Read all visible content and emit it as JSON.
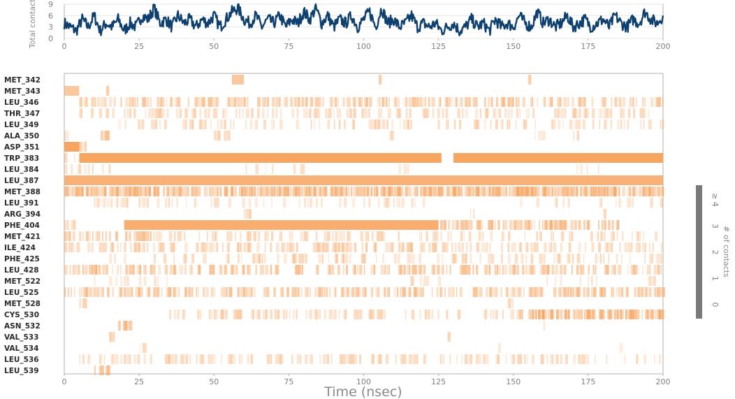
{
  "chart_data": [
    {
      "type": "line",
      "ylabel": "Total contacts",
      "xlabel": "",
      "xlim": [
        0,
        200
      ],
      "ylim": [
        0,
        9
      ],
      "xticks": [
        "0",
        "25",
        "50",
        "75",
        "100",
        "125",
        "150",
        "175",
        "200"
      ],
      "yticks": [
        "0",
        "3",
        "6",
        "9"
      ],
      "color": "#0d3f6f",
      "series": [
        {
          "x": [
            0,
            2,
            4,
            6,
            8,
            10,
            12,
            14,
            16,
            18,
            20,
            22,
            24,
            26,
            28,
            30,
            32,
            34,
            36,
            38,
            40,
            42,
            44,
            46,
            48,
            50,
            52,
            54,
            56,
            58,
            60,
            62,
            64,
            66,
            68,
            70,
            72,
            74,
            76,
            78,
            80,
            82,
            84,
            86,
            88,
            90,
            92,
            94,
            96,
            98,
            100,
            102,
            104,
            106,
            108,
            110,
            112,
            114,
            116,
            118,
            120,
            122,
            124,
            126,
            128,
            130,
            132,
            134,
            136,
            138,
            140,
            142,
            144,
            146,
            148,
            150,
            152,
            154,
            156,
            158,
            160,
            162,
            164,
            166,
            168,
            170,
            172,
            174,
            176,
            178,
            180,
            182,
            184,
            186,
            188,
            190,
            192,
            194,
            196,
            198,
            200
          ],
          "values": [
            4,
            3,
            2,
            5,
            3,
            6,
            2,
            4,
            3,
            5,
            2,
            4,
            3,
            6,
            5,
            8,
            4,
            5,
            3,
            6,
            4,
            5,
            3,
            5,
            4,
            6,
            3,
            5,
            7,
            8,
            5,
            4,
            6,
            3,
            5,
            4,
            6,
            3,
            5,
            4,
            7,
            5,
            8,
            4,
            6,
            3,
            5,
            4,
            6,
            3,
            5,
            7,
            3,
            8,
            4,
            5,
            3,
            4,
            6,
            3,
            4,
            3,
            4,
            2,
            3,
            4,
            2,
            3,
            5,
            3,
            4,
            2,
            5,
            3,
            4,
            3,
            6,
            4,
            3,
            7,
            4,
            5,
            3,
            4,
            6,
            3,
            4,
            5,
            3,
            4,
            5,
            3,
            6,
            4,
            3,
            5,
            4,
            7,
            5,
            4,
            6
          ]
        }
      ]
    },
    {
      "type": "heatmap",
      "xlabel": "Time (nsec)",
      "xlim": [
        0,
        200
      ],
      "xticks": [
        "0",
        "25",
        "50",
        "75",
        "100",
        "125",
        "150",
        "175",
        "200"
      ],
      "rows": [
        "MET_342",
        "MET_343",
        "LEU_346",
        "THR_347",
        "LEU_349",
        "ALA_350",
        "ASP_351",
        "TRP_383",
        "LEU_384",
        "LEU_387",
        "MET_388",
        "LEU_391",
        "ARG_394",
        "PHE_404",
        "MET_421",
        "ILE_424",
        "PHE_425",
        "LEU_428",
        "MET_522",
        "LEU_525",
        "MET_528",
        "CYS_530",
        "ASN_532",
        "VAL_533",
        "VAL_534",
        "LEU_536",
        "LEU_539"
      ],
      "intervals": [
        [
          [
            56,
            60,
            0.4
          ],
          [
            105,
            106,
            0.3
          ],
          [
            155,
            156,
            0.3
          ]
        ],
        [
          [
            0,
            5,
            0.4
          ],
          [
            14,
            15,
            0.3
          ]
        ],
        [
          [
            5,
            200,
            0.45,
            0.6
          ]
        ],
        [
          [
            5,
            80,
            0.25,
            0.35
          ],
          [
            80,
            195,
            0.3,
            0.4
          ]
        ],
        [
          [
            18,
            200,
            0.3,
            0.3
          ]
        ],
        [
          [
            0,
            8,
            0.3,
            0.4
          ],
          [
            12,
            15,
            0.4,
            0.8
          ],
          [
            50,
            55,
            0.3,
            0.6
          ],
          [
            108,
            110,
            0.3,
            0.6
          ],
          [
            155,
            160,
            0.3,
            0.5
          ],
          [
            170,
            172,
            0.3,
            0.6
          ]
        ],
        [
          [
            0,
            5,
            1.0,
            1.0
          ],
          [
            5,
            10,
            0.6,
            0.4
          ]
        ],
        [
          [
            0,
            5,
            0.3,
            0.3
          ],
          [
            5,
            126,
            1.0,
            1.0
          ],
          [
            130,
            200,
            1.0,
            1.0
          ]
        ],
        [
          [
            0,
            15,
            0.3,
            0.4
          ],
          [
            60,
            80,
            0.2,
            0.2
          ],
          [
            110,
            120,
            0.2,
            0.2
          ],
          [
            170,
            180,
            0.2,
            0.2
          ]
        ],
        [
          [
            0,
            200,
            0.8,
            0.95
          ]
        ],
        [
          [
            0,
            200,
            0.7,
            0.85
          ]
        ],
        [
          [
            10,
            40,
            0.25,
            0.4
          ],
          [
            40,
            120,
            0.2,
            0.25
          ],
          [
            150,
            200,
            0.2,
            0.2
          ]
        ],
        [
          [
            60,
            62,
            0.4,
            0.7
          ],
          [
            135,
            137,
            0.4,
            0.7
          ],
          [
            180,
            181,
            0.4,
            0.8
          ]
        ],
        [
          [
            0,
            5,
            0.3,
            0.4
          ],
          [
            20,
            125,
            0.85,
            0.95
          ],
          [
            125,
            185,
            0.6,
            0.6
          ]
        ],
        [
          [
            0,
            30,
            0.5,
            0.6
          ],
          [
            30,
            200,
            0.3,
            0.3
          ]
        ],
        [
          [
            0,
            45,
            0.3,
            0.4
          ],
          [
            45,
            120,
            0.4,
            0.5
          ],
          [
            120,
            200,
            0.3,
            0.4
          ]
        ],
        [
          [
            15,
            200,
            0.3,
            0.35
          ]
        ],
        [
          [
            0,
            200,
            0.5,
            0.5
          ]
        ],
        [
          [
            10,
            35,
            0.2,
            0.3
          ],
          [
            115,
            125,
            0.3,
            0.4
          ],
          [
            160,
            180,
            0.2,
            0.2
          ],
          [
            195,
            198,
            0.4,
            0.6
          ]
        ],
        [
          [
            0,
            200,
            0.5,
            0.6
          ]
        ],
        [
          [
            5,
            7,
            0.5,
            0.7
          ],
          [
            148,
            150,
            0.4,
            0.7
          ]
        ],
        [
          [
            35,
            100,
            0.3,
            0.4
          ],
          [
            100,
            150,
            0.3,
            0.3
          ],
          [
            150,
            200,
            0.75,
            0.75
          ]
        ],
        [
          [
            18,
            22,
            0.6,
            0.6
          ],
          [
            160,
            161,
            0.3,
            0.7
          ]
        ],
        [
          [
            15,
            17,
            0.4,
            0.7
          ],
          [
            128,
            130,
            0.4,
            0.6
          ]
        ],
        [
          [
            25,
            27,
            0.3,
            0.7
          ],
          [
            145,
            146,
            0.3,
            0.8
          ],
          [
            185,
            187,
            0.3,
            0.6
          ]
        ],
        [
          [
            5,
            200,
            0.3,
            0.4
          ]
        ],
        [
          [
            10,
            15,
            0.5,
            0.6
          ]
        ]
      ],
      "colorbar": {
        "label": "# of contacts",
        "ticks": [
          "0",
          "1",
          "2",
          "3",
          "≥ 4"
        ]
      }
    }
  ]
}
